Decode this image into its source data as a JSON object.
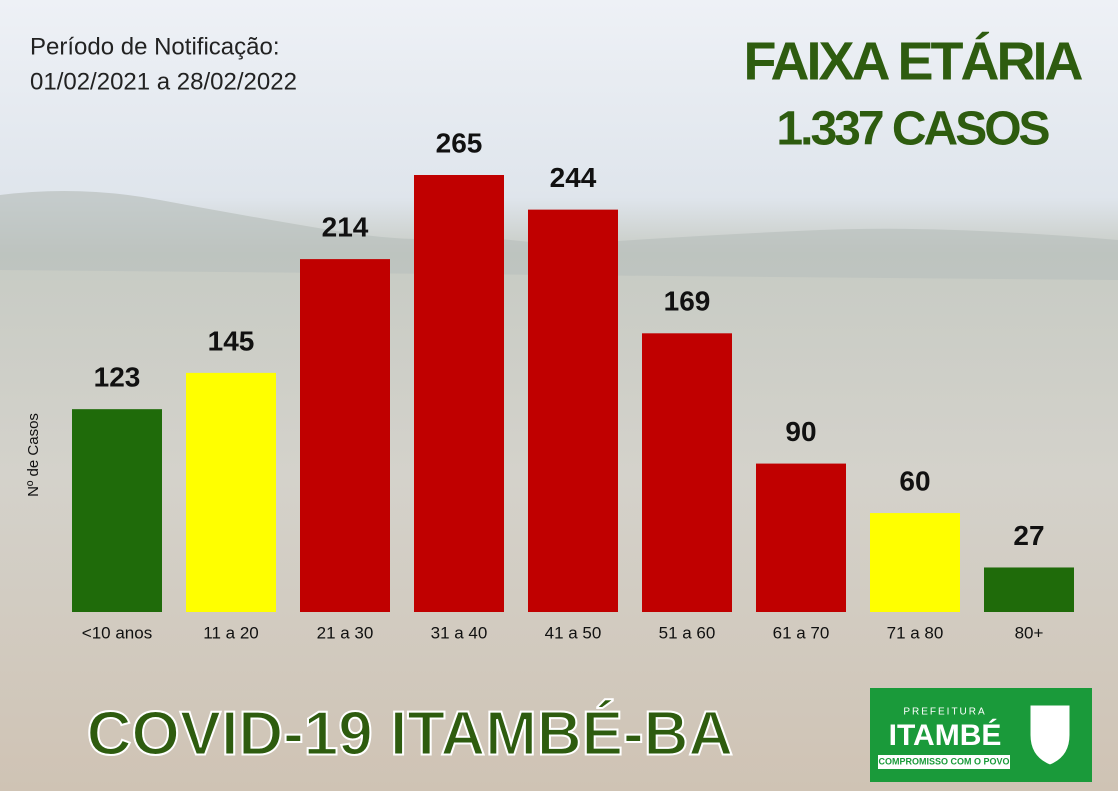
{
  "chart_data": {
    "type": "bar",
    "title": "FAIXA ETÁRIA",
    "subtitle": "1.337 CASOS",
    "period_label": "Período de Notificação:",
    "period": "01/02/2021 a 28/02/2022",
    "y_label": "Nº de Casos",
    "footer": "COVID-19  ITAMBÉ-BA",
    "categories": [
      "<10 anos",
      "11 a 20",
      "21 a 30",
      "31 a 40",
      "41 a 50",
      "51 a 60",
      "61 a 70",
      "71 a 80",
      "80+"
    ],
    "values": [
      123,
      145,
      214,
      265,
      244,
      169,
      90,
      60,
      27
    ],
    "colors": [
      "#1f6b0a",
      "#ffff00",
      "#c00000",
      "#c00000",
      "#c00000",
      "#c00000",
      "#c00000",
      "#ffff00",
      "#1f6b0a"
    ]
  },
  "logo": {
    "top": "PREFEITURA",
    "name": "ITAMBÉ",
    "slogan": "COMPROMISSO COM O POVO"
  }
}
